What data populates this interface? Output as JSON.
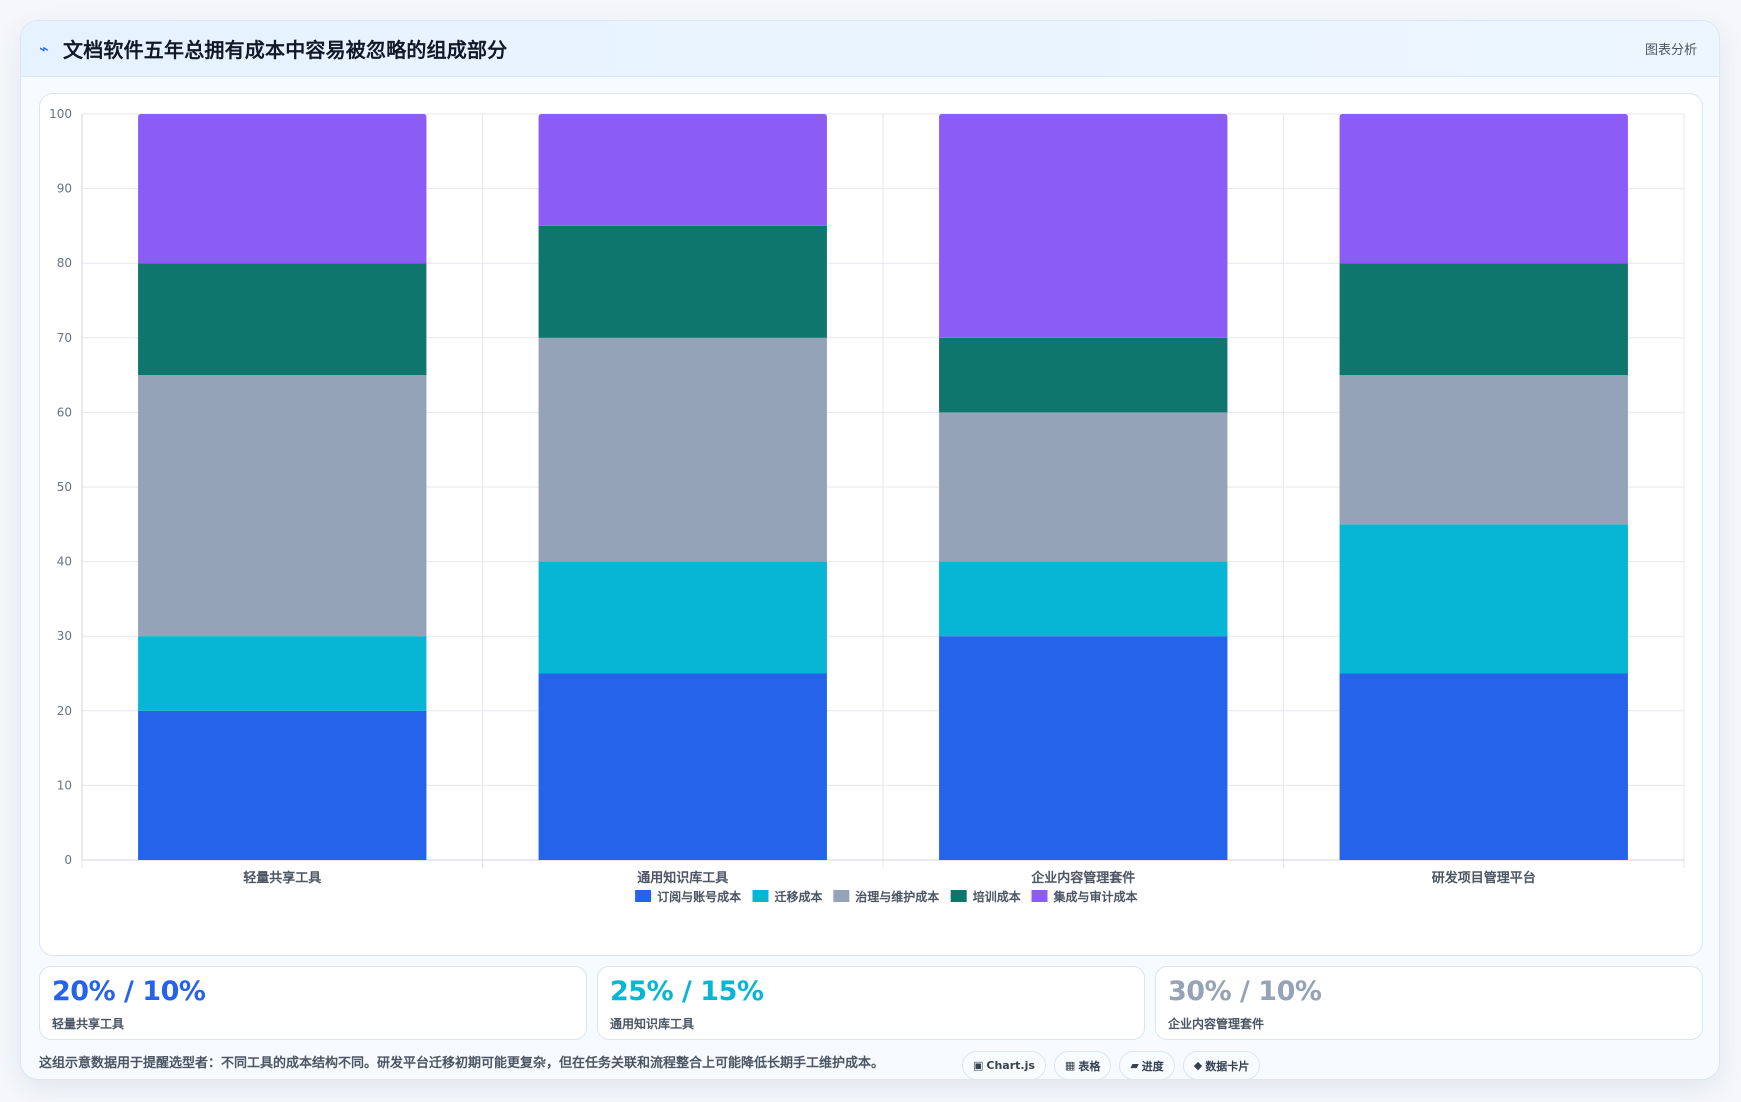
{
  "header": {
    "icon": "lightning-icon",
    "title": "文档软件五年总拥有成本中容易被忽略的组成部分",
    "right_label": "图表分析"
  },
  "chart_data": {
    "type": "bar",
    "stacked": true,
    "title": "",
    "xlabel": "",
    "ylabel": "",
    "categories": [
      "轻量共享工具",
      "通用知识库工具",
      "企业内容管理套件",
      "研发项目管理平台"
    ],
    "ylim": [
      0,
      100
    ],
    "yticks": [
      0,
      10,
      20,
      30,
      40,
      50,
      60,
      70,
      80,
      90,
      100
    ],
    "grid": true,
    "legend_position": "bottom",
    "series": [
      {
        "name": "订阅与账号成本",
        "color": "#2563eb",
        "values": [
          20,
          25,
          30,
          25
        ]
      },
      {
        "name": "迁移成本",
        "color": "#06b6d4",
        "values": [
          10,
          15,
          10,
          20
        ]
      },
      {
        "name": "治理与维护成本",
        "color": "#94a3b8",
        "values": [
          35,
          30,
          20,
          20
        ]
      },
      {
        "name": "培训成本",
        "color": "#0f766e",
        "values": [
          15,
          15,
          10,
          15
        ]
      },
      {
        "name": "集成与审计成本",
        "color": "#8b5cf6",
        "values": [
          20,
          15,
          30,
          20
        ]
      }
    ]
  },
  "metrics": [
    {
      "value": "20% / 10%",
      "label": "轻量共享工具",
      "color": "#2563eb"
    },
    {
      "value": "25% / 15%",
      "label": "通用知识库工具",
      "color": "#06b6d4"
    },
    {
      "value": "30% / 10%",
      "label": "企业内容管理套件",
      "color": "#94a3b8"
    }
  ],
  "note": "这组示意数据用于提醒选型者：不同工具的成本结构不同。研发平台迁移初期可能更复杂，但在任务关联和流程整合上可能降低长期手工维护成本。",
  "tags": [
    {
      "icon": "▣",
      "label": "Chart.js"
    },
    {
      "icon": "▦",
      "label": "表格"
    },
    {
      "icon": "▰",
      "label": "进度"
    },
    {
      "icon": "◆",
      "label": "数据卡片"
    }
  ]
}
